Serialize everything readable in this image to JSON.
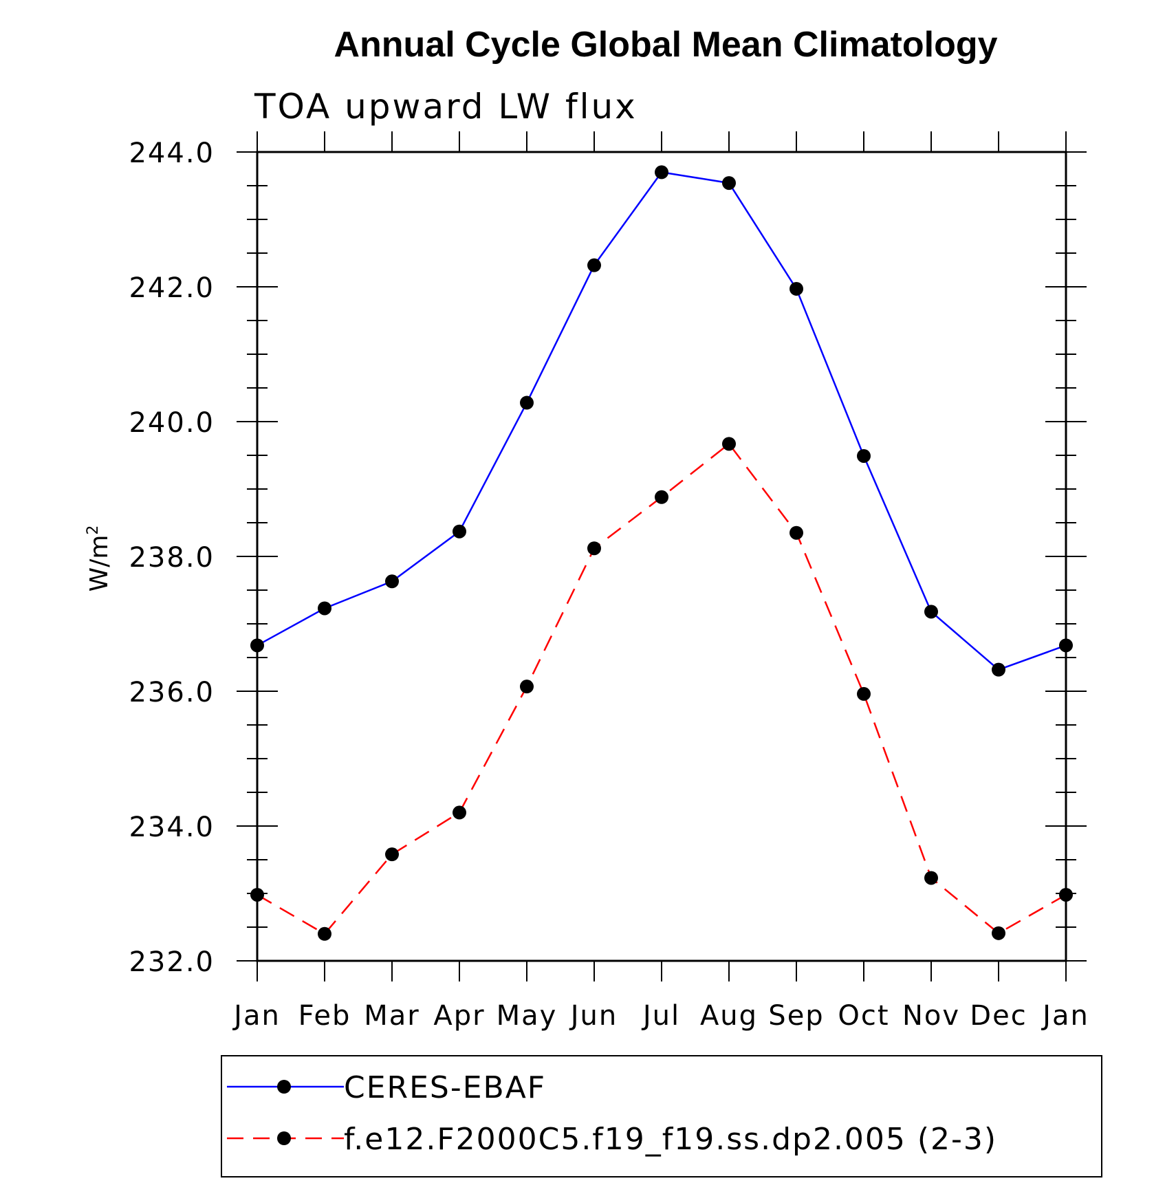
{
  "chart_data": {
    "type": "line",
    "title": "Annual Cycle Global Mean Climatology",
    "subtitle": "TOA upward LW flux",
    "ylabel_base": "W/m",
    "ylabel_sup": "2",
    "xlabel": "",
    "categories": [
      "Jan",
      "Feb",
      "Mar",
      "Apr",
      "May",
      "Jun",
      "Jul",
      "Aug",
      "Sep",
      "Oct",
      "Nov",
      "Dec",
      "Jan"
    ],
    "ylim": [
      232.0,
      244.0
    ],
    "yticks": [
      "232.0",
      "234.0",
      "236.0",
      "238.0",
      "240.0",
      "242.0",
      "244.0"
    ],
    "ytick_values": [
      232,
      234,
      236,
      238,
      240,
      242,
      244
    ],
    "yminor_step": 0.5,
    "series": [
      {
        "name": "CERES-EBAF",
        "color": "#0000ff",
        "line_style": "solid",
        "marker_color": "#000000",
        "values": [
          236.68,
          237.23,
          237.63,
          238.37,
          240.28,
          242.32,
          243.7,
          243.54,
          241.97,
          239.49,
          237.18,
          236.32,
          236.68
        ]
      },
      {
        "name": "f.e12.F2000C5.f19_f19.ss.dp2.005 (2-3)",
        "color": "#ff0000",
        "line_style": "dashed",
        "marker_color": "#000000",
        "values": [
          232.98,
          232.4,
          233.58,
          234.2,
          236.07,
          238.12,
          238.88,
          239.67,
          238.35,
          235.96,
          233.23,
          232.41,
          232.98
        ]
      }
    ],
    "legend_placement": "bottom"
  }
}
